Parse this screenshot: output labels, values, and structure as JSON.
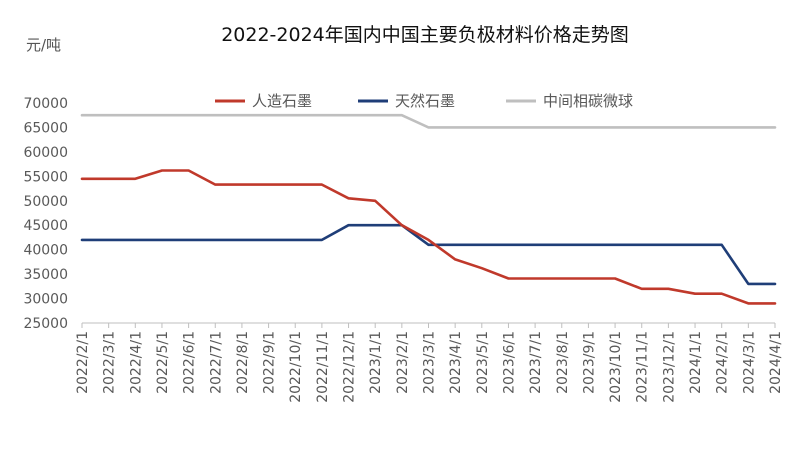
{
  "chart_data": {
    "type": "line",
    "title": "2022-2024年国内中国主要负极材料价格走势图",
    "ylabel": "元/吨",
    "xlabel": "",
    "ylim": [
      25000,
      70000
    ],
    "yticks": [
      70000,
      65000,
      60000,
      55000,
      50000,
      45000,
      40000,
      35000,
      30000,
      25000
    ],
    "ytick_labels": [
      "70000",
      "65000",
      "60000",
      "55000",
      "50000",
      "45000",
      "40000",
      "35000",
      "30000",
      "25000"
    ],
    "grid": false,
    "legend_position": "top",
    "categories": [
      "2022/2/1",
      "2022/3/1",
      "2022/4/1",
      "2022/5/1",
      "2022/6/1",
      "2022/7/1",
      "2022/8/1",
      "2022/9/1",
      "2022/10/1",
      "2022/11/1",
      "2022/12/1",
      "2023/1/1",
      "2023/2/1",
      "2023/3/1",
      "2023/4/1",
      "2023/5/1",
      "2023/6/1",
      "2023/7/1",
      "2023/8/1",
      "2023/9/1",
      "2023/10/1",
      "2023/11/1",
      "2023/12/1",
      "2024/1/1",
      "2024/2/1",
      "2024/3/1",
      "2024/4/1"
    ],
    "series": [
      {
        "name": "人造石墨",
        "color": "#c0392b",
        "values": [
          54500,
          54500,
          54500,
          56200,
          56200,
          53300,
          53300,
          53300,
          53300,
          53300,
          50500,
          50000,
          45000,
          42000,
          38000,
          36200,
          34100,
          34100,
          34100,
          34100,
          34100,
          32000,
          32000,
          31000,
          31000,
          29000,
          29000
        ]
      },
      {
        "name": "天然石墨",
        "color": "#1f3e78",
        "values": [
          42000,
          42000,
          42000,
          42000,
          42000,
          42000,
          42000,
          42000,
          42000,
          42000,
          45000,
          45000,
          45000,
          41000,
          41000,
          41000,
          41000,
          41000,
          41000,
          41000,
          41000,
          41000,
          41000,
          41000,
          41000,
          33000,
          33000
        ]
      },
      {
        "name": "中间相碳微球",
        "color": "#bfbfbf",
        "values": [
          67500,
          67500,
          67500,
          67500,
          67500,
          67500,
          67500,
          67500,
          67500,
          67500,
          67500,
          67500,
          67500,
          65000,
          65000,
          65000,
          65000,
          65000,
          65000,
          65000,
          65000,
          65000,
          65000,
          65000,
          65000,
          65000,
          65000
        ]
      }
    ]
  }
}
